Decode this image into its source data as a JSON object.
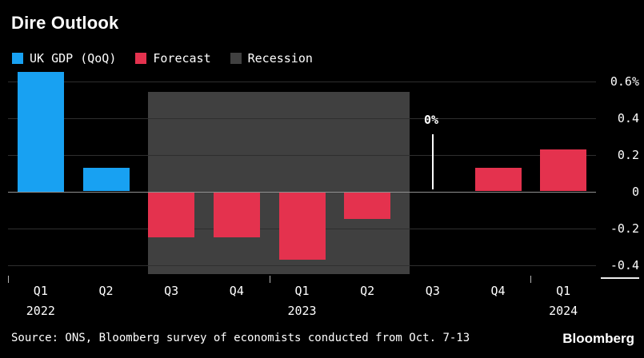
{
  "legend": [
    {
      "label": "UK GDP (QoQ)",
      "color": "#18a1f2"
    },
    {
      "label": "Forecast",
      "color": "#e4324e"
    },
    {
      "label": "Recession",
      "color": "#404040"
    }
  ],
  "chart_data": {
    "type": "bar",
    "title": "Dire Outlook",
    "xlabel": "",
    "ylabel": "",
    "ylim": [
      -0.45,
      0.65
    ],
    "grid": true,
    "legend_position": "top-left",
    "yticks": [
      {
        "value": 0.6,
        "label": "0.6%"
      },
      {
        "value": 0.4,
        "label": "0.4"
      },
      {
        "value": 0.2,
        "label": "0.2"
      },
      {
        "value": 0,
        "label": "0"
      },
      {
        "value": -0.2,
        "label": "-0.2"
      },
      {
        "value": -0.4,
        "label": "-0.4"
      }
    ],
    "bars": [
      {
        "quarter": "Q1",
        "year": "2022",
        "value": 0.65,
        "series": "UK GDP (QoQ)"
      },
      {
        "quarter": "Q2",
        "year": "",
        "value": 0.13,
        "series": "UK GDP (QoQ)"
      },
      {
        "quarter": "Q3",
        "year": "",
        "value": -0.25,
        "series": "Forecast"
      },
      {
        "quarter": "Q4",
        "year": "",
        "value": -0.25,
        "series": "Forecast"
      },
      {
        "quarter": "Q1",
        "year": "2023",
        "value": -0.37,
        "series": "Forecast"
      },
      {
        "quarter": "Q2",
        "year": "",
        "value": -0.15,
        "series": "Forecast"
      },
      {
        "quarter": "Q3",
        "year": "",
        "value": 0,
        "series": "Forecast"
      },
      {
        "quarter": "Q4",
        "year": "",
        "value": 0.13,
        "series": "Forecast"
      },
      {
        "quarter": "Q1",
        "year": "2024",
        "value": 0.23,
        "series": "Forecast"
      }
    ],
    "recession": {
      "label": "Recession",
      "start_index": 2,
      "end_index": 5
    },
    "annotation": {
      "text": "0%",
      "bar_index": 6,
      "line_from": 0.31,
      "line_to": 0.01
    }
  },
  "footer": {
    "source": "Source: ONS, Bloomberg survey of economists conducted from Oct. 7-13",
    "brand": "Bloomberg"
  }
}
